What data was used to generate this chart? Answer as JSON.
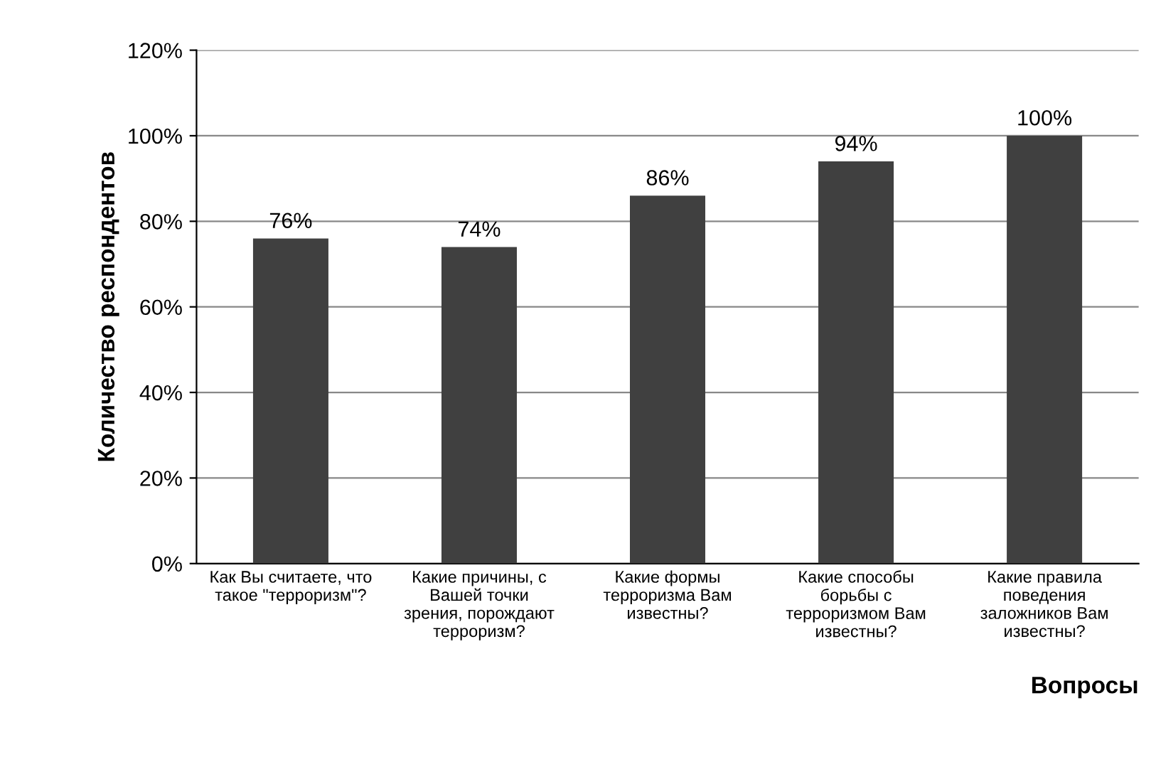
{
  "chart_data": {
    "type": "bar",
    "categories": [
      "Как Вы считаете, что\nтакое \"терроризм\"?",
      "Какие причины, с\nВашей точки\nзрения, порождают\nтерроризм?",
      "Какие формы\nтерроризма Вам\nизвестны?",
      "Какие способы\nборьбы с\nтерроризмом Вам\nизвестны?",
      "Какие правила\nповедения\nзаложников Вам\nизвестны?"
    ],
    "values": [
      76,
      74,
      86,
      94,
      100
    ],
    "value_labels": [
      "76%",
      "74%",
      "86%",
      "94%",
      "100%"
    ],
    "color": "#404040",
    "ylabel": "Количество респондентов",
    "xlabel": "Вопросы",
    "ylim": [
      0,
      120
    ],
    "yticks": [
      {
        "value": 0,
        "label": "0%"
      },
      {
        "value": 20,
        "label": "20%"
      },
      {
        "value": 40,
        "label": "40%"
      },
      {
        "value": 60,
        "label": "60%"
      },
      {
        "value": 80,
        "label": "80%"
      },
      {
        "value": 100,
        "label": "100%"
      },
      {
        "value": 120,
        "label": "120%"
      }
    ],
    "grid": "y"
  }
}
